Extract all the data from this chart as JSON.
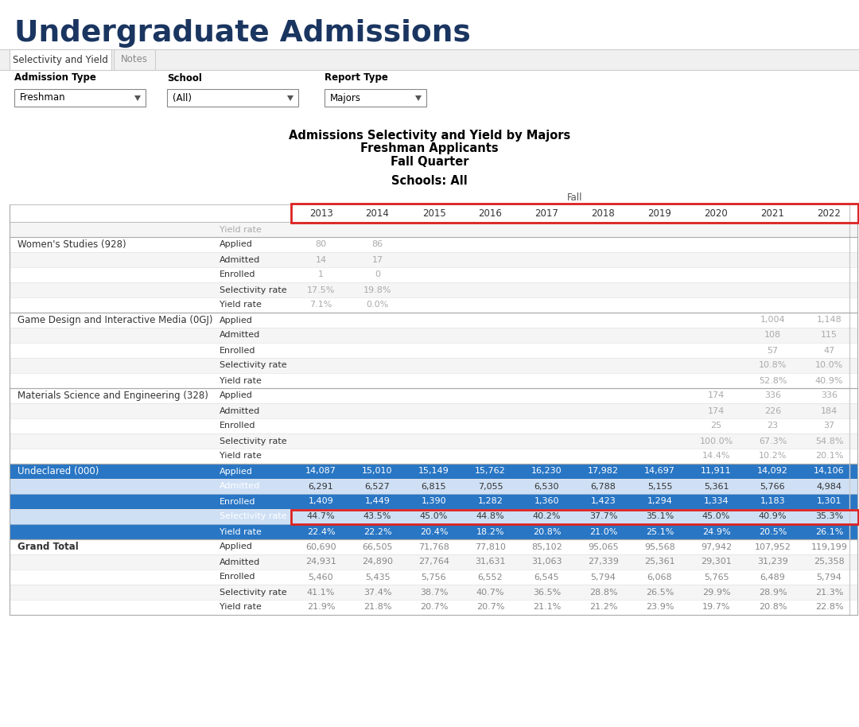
{
  "title": "Undergraduate Admissions",
  "tab1": "Selectivity and Yield",
  "tab2": "Notes",
  "label_admission": "Admission Type",
  "label_school": "School",
  "label_report": "Report Type",
  "val_admission": "Freshman",
  "val_school": "(All)",
  "val_report": "Majors",
  "subtitle1": "Admissions Selectivity and Yield by Majors",
  "subtitle2": "Freshman Applicants",
  "subtitle3": "Fall Quarter",
  "schools_label": "Schools: All",
  "fall_label": "Fall",
  "years": [
    "2013",
    "2014",
    "2015",
    "2016",
    "2017",
    "2018",
    "2019",
    "2020",
    "2021",
    "2022"
  ],
  "sections": [
    {
      "name": "Women's Studies (928)",
      "bg": "#ffffff",
      "text_color": "#333333",
      "bold_name": false,
      "rows": [
        {
          "label": "Applied",
          "values": [
            "80",
            "86",
            "",
            "",
            "",
            "",
            "",
            "",
            "",
            ""
          ],
          "alt": false
        },
        {
          "label": "Admitted",
          "values": [
            "14",
            "17",
            "",
            "",
            "",
            "",
            "",
            "",
            "",
            ""
          ],
          "alt": true
        },
        {
          "label": "Enrolled",
          "values": [
            "1",
            "0",
            "",
            "",
            "",
            "",
            "",
            "",
            "",
            ""
          ],
          "alt": false
        },
        {
          "label": "Selectivity rate",
          "values": [
            "17.5%",
            "19.8%",
            "",
            "",
            "",
            "",
            "",
            "",
            "",
            ""
          ],
          "alt": true
        },
        {
          "label": "Yield rate",
          "values": [
            "7.1%",
            "0.0%",
            "",
            "",
            "",
            "",
            "",
            "",
            "",
            ""
          ],
          "alt": false
        }
      ]
    },
    {
      "name": "Game Design and Interactive Media (0GJ)",
      "bg": "#ffffff",
      "text_color": "#333333",
      "bold_name": false,
      "rows": [
        {
          "label": "Applied",
          "values": [
            "",
            "",
            "",
            "",
            "",
            "",
            "",
            "",
            "1,004",
            "1,148"
          ],
          "alt": false
        },
        {
          "label": "Admitted",
          "values": [
            "",
            "",
            "",
            "",
            "",
            "",
            "",
            "",
            "108",
            "115"
          ],
          "alt": true
        },
        {
          "label": "Enrolled",
          "values": [
            "",
            "",
            "",
            "",
            "",
            "",
            "",
            "",
            "57",
            "47"
          ],
          "alt": false
        },
        {
          "label": "Selectivity rate",
          "values": [
            "",
            "",
            "",
            "",
            "",
            "",
            "",
            "",
            "10.8%",
            "10.0%"
          ],
          "alt": true
        },
        {
          "label": "Yield rate",
          "values": [
            "",
            "",
            "",
            "",
            "",
            "",
            "",
            "",
            "52.8%",
            "40.9%"
          ],
          "alt": false
        }
      ]
    },
    {
      "name": "Materials Science and Engineering (328)",
      "bg": "#ffffff",
      "text_color": "#333333",
      "bold_name": false,
      "rows": [
        {
          "label": "Applied",
          "values": [
            "",
            "",
            "",
            "",
            "",
            "",
            "",
            "174",
            "336",
            "336"
          ],
          "alt": false
        },
        {
          "label": "Admitted",
          "values": [
            "",
            "",
            "",
            "",
            "",
            "",
            "",
            "174",
            "226",
            "184"
          ],
          "alt": true
        },
        {
          "label": "Enrolled",
          "values": [
            "",
            "",
            "",
            "",
            "",
            "",
            "",
            "25",
            "23",
            "37"
          ],
          "alt": false
        },
        {
          "label": "Selectivity rate",
          "values": [
            "",
            "",
            "",
            "",
            "",
            "",
            "",
            "100.0%",
            "67.3%",
            "54.8%"
          ],
          "alt": true
        },
        {
          "label": "Yield rate",
          "values": [
            "",
            "",
            "",
            "",
            "",
            "",
            "",
            "14.4%",
            "10.2%",
            "20.1%"
          ],
          "alt": false
        }
      ]
    },
    {
      "name": "Undeclared (000)",
      "bg": "#2976c4",
      "text_color": "#ffffff",
      "bold_name": false,
      "rows": [
        {
          "label": "Applied",
          "values": [
            "14,087",
            "15,010",
            "15,149",
            "15,762",
            "16,230",
            "17,982",
            "14,697",
            "11,911",
            "14,092",
            "14,106"
          ],
          "alt": false
        },
        {
          "label": "Admitted",
          "values": [
            "6,291",
            "6,527",
            "6,815",
            "7,055",
            "6,530",
            "6,788",
            "5,155",
            "5,361",
            "5,766",
            "4,984"
          ],
          "alt": true
        },
        {
          "label": "Enrolled",
          "values": [
            "1,409",
            "1,449",
            "1,390",
            "1,282",
            "1,360",
            "1,423",
            "1,294",
            "1,334",
            "1,183",
            "1,301"
          ],
          "alt": false
        },
        {
          "label": "Selectivity rate",
          "values": [
            "44.7%",
            "43.5%",
            "45.0%",
            "44.8%",
            "40.2%",
            "37.7%",
            "35.1%",
            "45.0%",
            "40.9%",
            "35.3%"
          ],
          "alt": true,
          "highlight_red_box": true
        },
        {
          "label": "Yield rate",
          "values": [
            "22.4%",
            "22.2%",
            "20.4%",
            "18.2%",
            "20.8%",
            "21.0%",
            "25.1%",
            "24.9%",
            "20.5%",
            "26.1%"
          ],
          "alt": false
        }
      ]
    },
    {
      "name": "Grand Total",
      "bg": "#ffffff",
      "text_color": "#333333",
      "bold_name": true,
      "rows": [
        {
          "label": "Applied",
          "values": [
            "60,690",
            "66,505",
            "71,768",
            "77,810",
            "85,102",
            "95,065",
            "95,568",
            "97,942",
            "107,952",
            "119,199"
          ],
          "alt": false
        },
        {
          "label": "Admitted",
          "values": [
            "24,931",
            "24,890",
            "27,764",
            "31,631",
            "31,063",
            "27,339",
            "25,361",
            "29,301",
            "31,239",
            "25,358"
          ],
          "alt": true
        },
        {
          "label": "Enrolled",
          "values": [
            "5,460",
            "5,435",
            "5,756",
            "6,552",
            "6,545",
            "5,794",
            "6,068",
            "5,765",
            "6,489",
            "5,794"
          ],
          "alt": false
        },
        {
          "label": "Selectivity rate",
          "values": [
            "41.1%",
            "37.4%",
            "38.7%",
            "40.7%",
            "36.5%",
            "28.8%",
            "26.5%",
            "29.9%",
            "28.9%",
            "21.3%"
          ],
          "alt": true
        },
        {
          "label": "Yield rate",
          "values": [
            "21.9%",
            "21.8%",
            "20.7%",
            "20.7%",
            "21.1%",
            "21.2%",
            "23.9%",
            "19.7%",
            "20.8%",
            "22.8%"
          ],
          "alt": false
        }
      ]
    }
  ]
}
